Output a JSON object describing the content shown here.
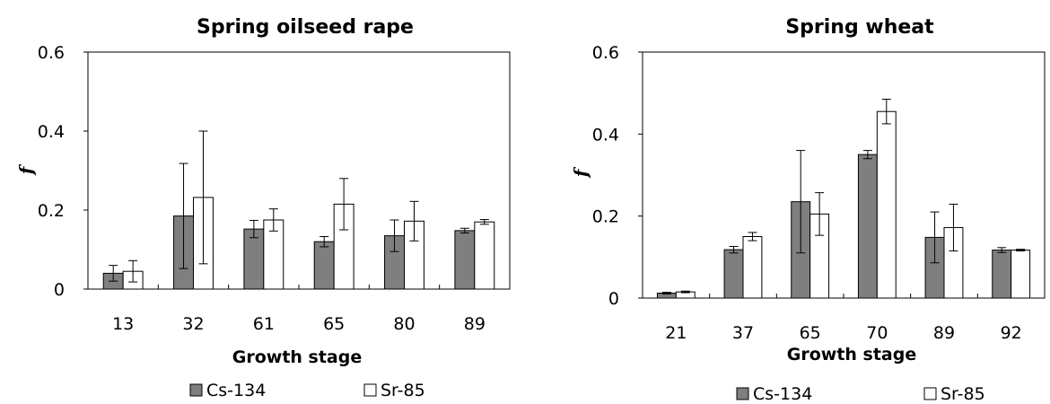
{
  "chart_data": [
    {
      "type": "bar",
      "title": "Spring oilseed rape",
      "xlabel": "Growth stage",
      "ylabel": "f",
      "categories": [
        "13",
        "32",
        "61",
        "65",
        "80",
        "89"
      ],
      "ylim": [
        0,
        0.6
      ],
      "yticks": [
        "0",
        "0.2",
        "0.4",
        "0.6"
      ],
      "grid": false,
      "legend_position": "bottom",
      "series": [
        {
          "name": "Cs-134",
          "color": "#7f7f7f",
          "values": [
            0.04,
            0.185,
            0.152,
            0.12,
            0.135,
            0.148
          ],
          "errors": [
            0.02,
            0.133,
            0.022,
            0.013,
            0.04,
            0.006
          ]
        },
        {
          "name": "Sr-85",
          "color": "#ffffff",
          "values": [
            0.045,
            0.232,
            0.175,
            0.215,
            0.172,
            0.17
          ],
          "errors": [
            0.027,
            0.168,
            0.028,
            0.065,
            0.05,
            0.006
          ]
        }
      ]
    },
    {
      "type": "bar",
      "title": "Spring wheat",
      "xlabel": "Growth stage",
      "ylabel": "f",
      "categories": [
        "21",
        "37",
        "65",
        "70",
        "89",
        "92"
      ],
      "ylim": [
        0,
        0.6
      ],
      "yticks": [
        "0",
        "0.2",
        "0.4",
        "0.6"
      ],
      "grid": false,
      "legend_position": "bottom",
      "series": [
        {
          "name": "Cs-134",
          "color": "#7f7f7f",
          "values": [
            0.012,
            0.118,
            0.235,
            0.35,
            0.148,
            0.117
          ],
          "errors": [
            0.002,
            0.008,
            0.125,
            0.01,
            0.062,
            0.006
          ]
        },
        {
          "name": "Sr-85",
          "color": "#ffffff",
          "values": [
            0.015,
            0.15,
            0.205,
            0.455,
            0.172,
            0.117
          ],
          "errors": [
            0.002,
            0.01,
            0.052,
            0.03,
            0.057,
            0.002
          ]
        }
      ]
    }
  ]
}
